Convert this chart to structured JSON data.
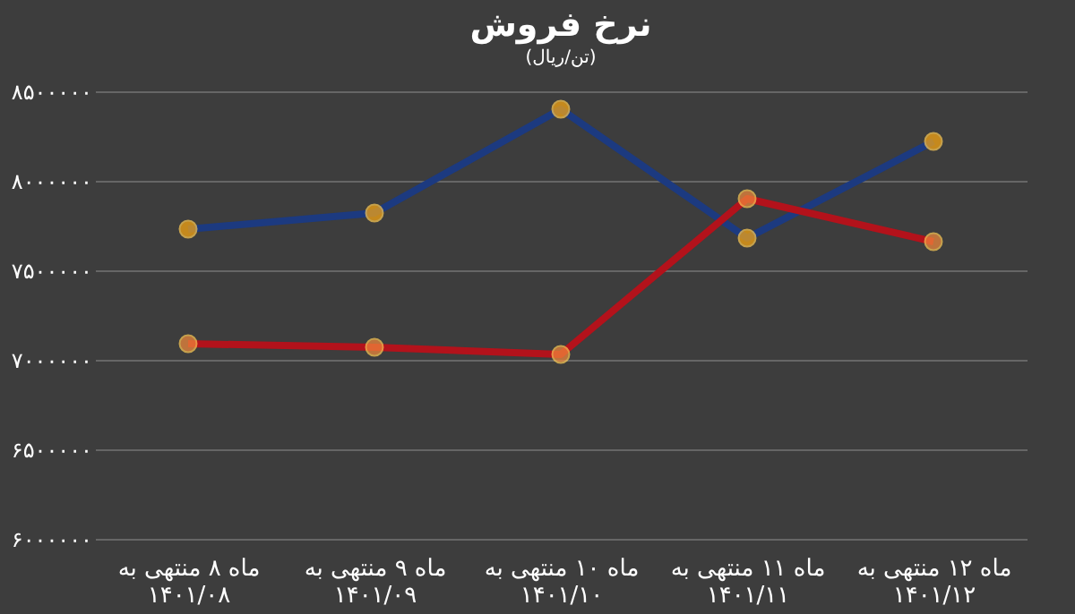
{
  "chart_data": {
    "type": "line",
    "title": "نرخ فروش",
    "subtitle": "(تن/ریال)",
    "categories": [
      "ماه ۸ منتهی به\n۱۴۰۱/۰۸",
      "ماه ۹ منتهی به\n۱۴۰۱/۰۹",
      "ماه ۱۰ منتهی به\n۱۴۰۱/۱۰",
      "ماه ۱۱ منتهی به\n۱۴۰۱/۱۱",
      "ماه ۱۲ منتهی به\n۱۴۰۱/۱۲"
    ],
    "series": [
      {
        "color": "#1c3a80",
        "values": [
          7730000,
          7820000,
          8400000,
          7680000,
          8220000
        ]
      },
      {
        "color": "#b3121b",
        "values": [
          7090000,
          7070000,
          7030000,
          7900000,
          7660000
        ]
      }
    ],
    "ylim": [
      6000000,
      8500000
    ],
    "yticks": [
      {
        "value": 6000000,
        "label": "۶۰۰۰۰۰۰"
      },
      {
        "value": 6500000,
        "label": "۶۵۰۰۰۰۰"
      },
      {
        "value": 7000000,
        "label": "۷۰۰۰۰۰۰"
      },
      {
        "value": 7500000,
        "label": "۷۵۰۰۰۰۰"
      },
      {
        "value": 8000000,
        "label": "۸۰۰۰۰۰۰"
      },
      {
        "value": 8500000,
        "label": "۸۵۰۰۰۰۰"
      }
    ],
    "grid": "y",
    "legend": false,
    "marker": "circle",
    "line_style": "solid"
  }
}
